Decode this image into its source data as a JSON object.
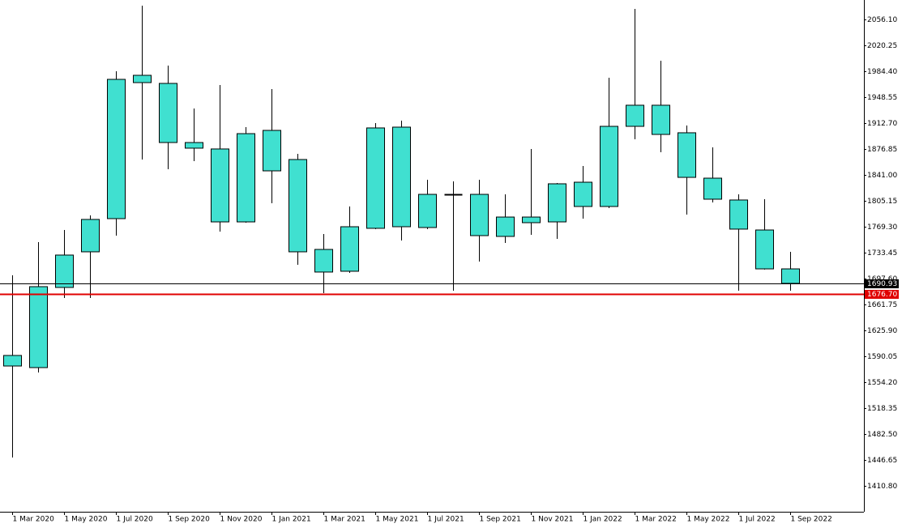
{
  "chart_data": {
    "type": "candlestick",
    "categories": [
      "1 Mar 2020",
      null,
      "1 May 2020",
      null,
      "1 Jul 2020",
      null,
      "1 Sep 2020",
      null,
      "1 Nov 2020",
      null,
      "1 Jan 2021",
      null,
      "1 Mar 2021",
      null,
      "1 May 2021",
      null,
      "1 Jul 2021",
      null,
      "1 Sep 2021",
      null,
      "1 Nov 2021",
      null,
      "1 Jan 2022",
      null,
      "1 Mar 2022",
      null,
      "1 May 2022",
      null,
      "1 Jul 2022",
      null,
      "1 Sep 2022"
    ],
    "open": [
      1591.2,
      1574.4,
      1685.3,
      1734.6,
      1780.5,
      1968.7,
      1967.6,
      1885.8,
      1876.9,
      1776.0,
      1902.6,
      1862.3,
      1737.9,
      1707.7,
      1767.1,
      1907.1,
      1768.2,
      1813.0,
      1814.1,
      1755.9,
      1782.7,
      1776.0,
      1830.9,
      1797.3,
      1908.2,
      1937.4,
      1899.3,
      1836.5,
      1806.3,
      1764.8,
      1711.0
    ],
    "high": [
      1702.1,
      1748.0,
      1764.8,
      1785.0,
      1984.4,
      2075.1,
      1992.2,
      1932.9,
      1965.4,
      1907.1,
      1959.8,
      1870.1,
      1759.2,
      1797.3,
      1912.7,
      1916.1,
      1834.3,
      1832.0,
      1834.3,
      1814.1,
      1876.9,
      1829.8,
      1853.3,
      1975.4,
      2070.7,
      1999.0,
      1909.3,
      1879.1,
      1814.1,
      1807.4,
      1734.6
    ],
    "low": [
      1450.0,
      1567.6,
      1670.7,
      1670.7,
      1757.0,
      1862.3,
      1848.8,
      1860.0,
      1762.6,
      1774.9,
      1801.8,
      1716.6,
      1677.4,
      1705.5,
      1766.0,
      1750.3,
      1766.0,
      1680.8,
      1721.1,
      1746.9,
      1758.1,
      1752.5,
      1780.5,
      1795.1,
      1890.3,
      1872.4,
      1786.1,
      1802.9,
      1680.8,
      1710.0,
      1680.8
    ],
    "close": [
      1576.6,
      1686.4,
      1730.1,
      1779.4,
      1973.2,
      1978.8,
      1885.8,
      1878.0,
      1776.0,
      1898.1,
      1846.6,
      1734.6,
      1706.6,
      1769.3,
      1906.0,
      1769.3,
      1814.1,
      1813.5,
      1757.0,
      1782.7,
      1774.9,
      1828.7,
      1797.3,
      1908.2,
      1937.4,
      1897.0,
      1837.6,
      1807.4,
      1766.0,
      1711.0,
      1690.93
    ],
    "color": "#40e0d0",
    "outline": "#000000",
    "ylim": [
      1374.95,
      2082.99
    ],
    "yticks": [
      {
        "value": 2056.1,
        "label": "2056.10"
      },
      2020.25,
      {
        "value": 1984.4,
        "label": "1984.40"
      },
      1948.55,
      {
        "value": 1912.7,
        "label": "1912.70"
      },
      1876.85,
      {
        "value": 1841.0,
        "label": "1841.00"
      },
      1805.15,
      {
        "value": 1769.3,
        "label": "1769.30"
      },
      1733.45,
      {
        "value": 1697.6,
        "label": "1697.60"
      },
      1661.75,
      {
        "value": 1625.9,
        "label": "1625.90"
      },
      1590.05,
      {
        "value": 1554.2,
        "label": "1554.20"
      },
      1518.35,
      {
        "value": 1482.5,
        "label": "1482.50"
      },
      1446.65,
      {
        "value": 1410.8,
        "label": "1410.80"
      }
    ],
    "price_lines": [
      {
        "value": 1690.93,
        "label": "1690.93",
        "color": "#000000"
      },
      {
        "value": 1676.7,
        "label": "1676.70",
        "color": "#e00000"
      }
    ]
  }
}
